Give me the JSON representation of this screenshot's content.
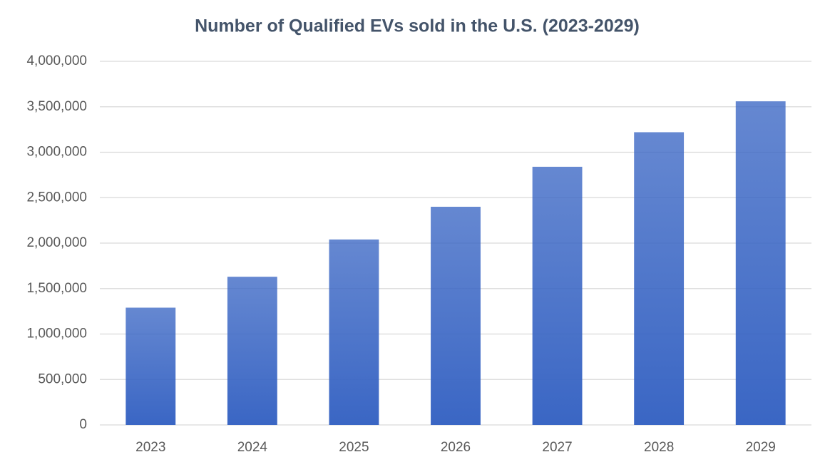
{
  "chart_data": {
    "type": "bar",
    "title": "Number of Qualified EVs sold in the U.S. (2023-2029)",
    "categories": [
      "2023",
      "2024",
      "2025",
      "2026",
      "2027",
      "2028",
      "2029"
    ],
    "values": [
      1290000,
      1630000,
      2040000,
      2400000,
      2840000,
      3220000,
      3560000
    ],
    "color": "#3a66c4",
    "ylim": [
      0,
      4000000
    ],
    "yticks": [
      0,
      {
        "value": 500000,
        "label": "500,000"
      },
      {
        "value": 1000000,
        "label": "1,000,000"
      },
      {
        "value": 1500000,
        "label": "1,500,000"
      },
      {
        "value": 2000000,
        "label": "2,000,000"
      },
      {
        "value": 2500000,
        "label": "2,500,000"
      },
      {
        "value": 3000000,
        "label": "3,000,000"
      },
      {
        "value": 3500000,
        "label": "3,500,000"
      },
      {
        "value": 4000000,
        "label": "4,000,000"
      }
    ],
    "grid": true
  }
}
